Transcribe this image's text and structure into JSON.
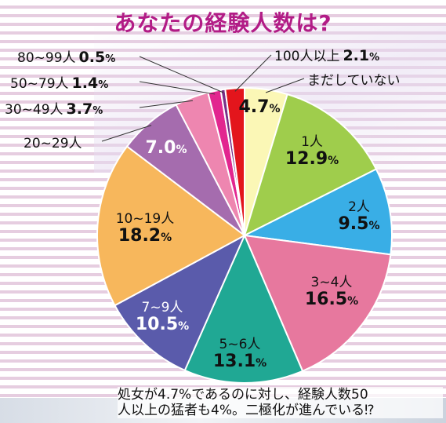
{
  "title": "あなたの経験人数は?",
  "caption_lines": [
    "処女が4.7%であるのに対し、経験人数50",
    "人以上の猛者も4%。二極化が進んでいる⁉"
  ],
  "chart_data": {
    "type": "pie",
    "title": "あなたの経験人数は?",
    "start_angle_deg": 0,
    "direction": "clockwise",
    "unit": "%",
    "slices": [
      {
        "label": "まだしていない",
        "value": 4.7,
        "value_text": "4.7",
        "color": "#fbf7b6",
        "text_color": "#111111"
      },
      {
        "label": "1人",
        "value": 12.9,
        "value_text": "12.9",
        "color": "#9fcd4c",
        "text_color": "#111111"
      },
      {
        "label": "2人",
        "value": 9.5,
        "value_text": "9.5",
        "color": "#39aee6",
        "text_color": "#111111"
      },
      {
        "label": "3~4人",
        "value": 16.5,
        "value_text": "16.5",
        "color": "#e7789e",
        "text_color": "#111111"
      },
      {
        "label": "5~6人",
        "value": 13.1,
        "value_text": "13.1",
        "color": "#20a894",
        "text_color": "#111111"
      },
      {
        "label": "7~9人",
        "value": 10.5,
        "value_text": "10.5",
        "color": "#5a5bab",
        "text_color": "#ffffff"
      },
      {
        "label": "10~19人",
        "value": 18.2,
        "value_text": "18.2",
        "color": "#f7b75c",
        "text_color": "#111111"
      },
      {
        "label": "20~29人",
        "value": 7.0,
        "value_text": "7.0",
        "color": "#a56cae",
        "text_color": "#ffffff"
      },
      {
        "label": "30~49人",
        "value": 3.7,
        "value_text": "3.7",
        "color": "#ee86b0",
        "text_color": "#111111"
      },
      {
        "label": "50~79人",
        "value": 1.4,
        "value_text": "1.4",
        "color": "#e2268f",
        "text_color": "#111111"
      },
      {
        "label": "80~99人",
        "value": 0.5,
        "value_text": "0.5",
        "color": "#7a2f87",
        "text_color": "#111111"
      },
      {
        "label": "100人以上",
        "value": 2.1,
        "value_text": "2.1",
        "color": "#e3151c",
        "text_color": "#111111"
      }
    ]
  }
}
